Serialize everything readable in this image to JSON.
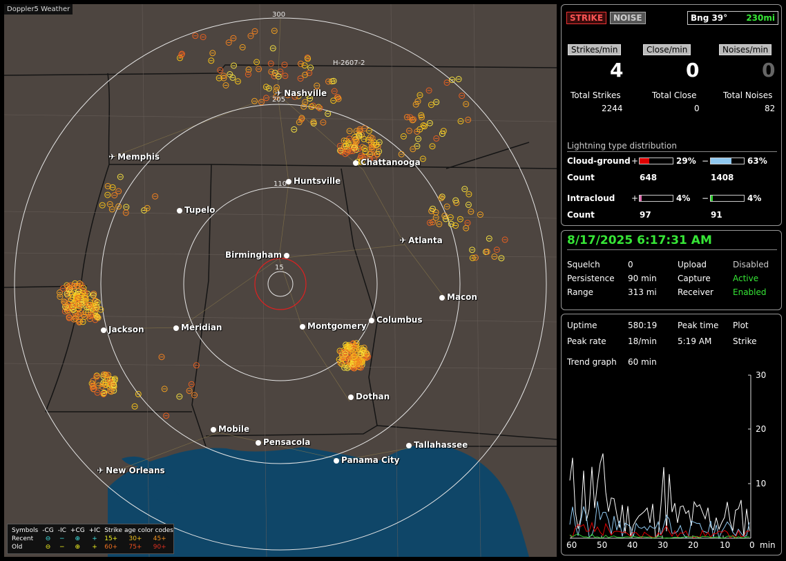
{
  "map": {
    "title": "Doppler5 Weather",
    "grid_label": "H-2607-2",
    "ring_labels": {
      "r15": "15",
      "r110": "110",
      "r205": "205",
      "r300": "300"
    },
    "cities": [
      {
        "name": "Nashville",
        "type": "airport"
      },
      {
        "name": "Memphis",
        "type": "airport"
      },
      {
        "name": "Chattanooga",
        "type": "dot"
      },
      {
        "name": "Huntsville",
        "type": "dot"
      },
      {
        "name": "Tupelo",
        "type": "dot"
      },
      {
        "name": "Atlanta",
        "type": "airport"
      },
      {
        "name": "Birmingham",
        "type": "dot"
      },
      {
        "name": "Macon",
        "type": "dot"
      },
      {
        "name": "Jackson",
        "type": "dot"
      },
      {
        "name": "Meridian",
        "type": "dot"
      },
      {
        "name": "Montgomery",
        "type": "dot"
      },
      {
        "name": "Columbus",
        "type": "dot"
      },
      {
        "name": "Dothan",
        "type": "dot"
      },
      {
        "name": "Mobile",
        "type": "dot"
      },
      {
        "name": "Pensacola",
        "type": "dot"
      },
      {
        "name": "Tallahassee",
        "type": "dot"
      },
      {
        "name": "Panama City",
        "type": "dot"
      },
      {
        "name": "New Orleans",
        "type": "airport"
      }
    ],
    "legend": {
      "symbols_label": "Symbols",
      "cols": [
        "-CG",
        "-IC",
        "+CG",
        "+IC"
      ],
      "recent_label": "Recent",
      "old_label": "Old",
      "recent_symbols": [
        "⊖",
        "−",
        "⊕",
        "+"
      ],
      "old_symbols": [
        "⊖",
        "−",
        "⊕",
        "+"
      ],
      "age_title": "Strike age color codes",
      "age_recent": [
        "15+",
        "30+",
        "45+"
      ],
      "age_old": [
        "60+",
        "75+",
        "90+"
      ]
    },
    "colors": {
      "land": "#4d4540",
      "water": "#0f4668",
      "ring": "#e6e6e6",
      "center_ring": "#e02020"
    }
  },
  "status": {
    "strike_button": "STRIKE",
    "noise_button": "NOISE",
    "bearing": "Bng 39°",
    "distance": "230mi",
    "rates": {
      "strikes_label": "Strikes/min",
      "strikes_value": "4",
      "close_label": "Close/min",
      "close_value": "0",
      "noises_label": "Noises/min",
      "noises_value": "0"
    },
    "totals": {
      "strikes_label": "Total Strikes",
      "strikes_value": "2244",
      "close_label": "Total Close",
      "close_value": "0",
      "noises_label": "Total Noises",
      "noises_value": "82"
    },
    "distribution": {
      "title": "Lightning type distribution",
      "cg_label": "Cloud-ground",
      "ic_label": "Intracloud",
      "count_label": "Count",
      "plus_sign": "+",
      "minus_sign": "−",
      "cg_plus_pct": "29%",
      "cg_plus_fraction": 0.29,
      "cg_minus_pct": "63%",
      "cg_minus_fraction": 0.63,
      "cg_plus_count": "648",
      "cg_minus_count": "1408",
      "ic_plus_pct": "4%",
      "ic_plus_fraction": 0.04,
      "ic_minus_pct": "4%",
      "ic_minus_fraction": 0.04,
      "ic_plus_count": "97",
      "ic_minus_count": "91",
      "bar_colors": {
        "cg_plus": "#e00000",
        "cg_minus": "#8fc8f0",
        "ic_plus": "#e070b0",
        "ic_minus": "#30d030"
      }
    }
  },
  "system": {
    "datetime": "8/17/2025 6:17:31 AM",
    "squelch_label": "Squelch",
    "squelch_value": "0",
    "persistence_label": "Persistence",
    "persistence_value": "90 min",
    "range_label": "Range",
    "range_value": "313 mi",
    "upload_label": "Upload",
    "upload_value": "Disabled",
    "capture_label": "Capture",
    "capture_value": "Active",
    "receiver_label": "Receiver",
    "receiver_value": "Enabled"
  },
  "trend": {
    "uptime_label": "Uptime",
    "uptime_value": "580:19",
    "peak_time_label": "Peak time",
    "peak_time_value": "5:19 AM",
    "plot_label": "Plot",
    "plot_value": "Strike",
    "peak_rate_label": "Peak rate",
    "peak_rate_value": "18/min",
    "trend_label": "Trend graph",
    "trend_value": "60 min",
    "x_ticks": [
      "60",
      "50",
      "40",
      "30",
      "20",
      "10",
      "0"
    ],
    "x_unit": "min",
    "y_ticks": [
      "30",
      "20",
      "10"
    ]
  }
}
